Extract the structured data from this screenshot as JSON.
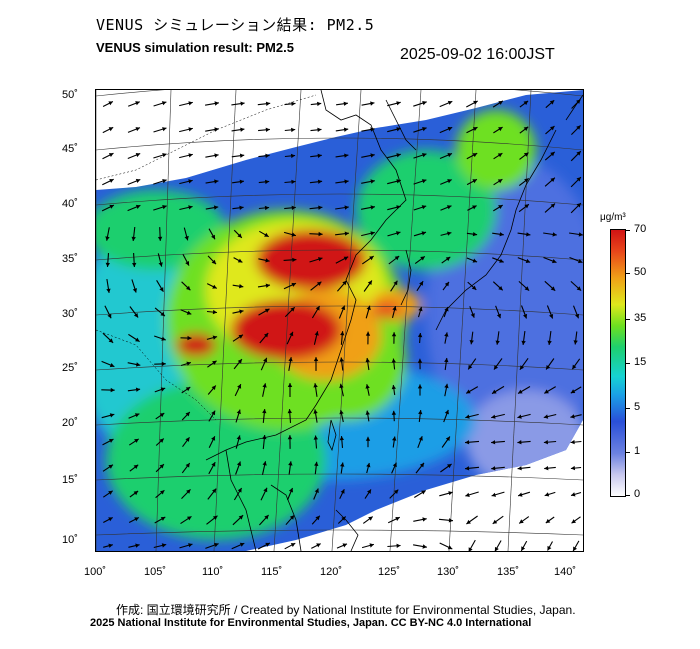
{
  "header": {
    "title_jp": "VENUS シミュレーション結果: PM2.5",
    "title_en": "VENUS simulation result: PM2.5",
    "timestamp": "2025-09-02 16:00JST"
  },
  "map": {
    "lat_labels": [
      "50˚",
      "45˚",
      "40˚",
      "35˚",
      "30˚",
      "25˚",
      "20˚",
      "15˚",
      "10˚"
    ],
    "lon_labels": [
      "100˚",
      "105˚",
      "110˚",
      "115˚",
      "120˚",
      "125˚",
      "130˚",
      "135˚",
      "140˚"
    ],
    "pollution_colors": [
      "#d01414",
      "#e8461a",
      "#f0a018",
      "#dfe81c",
      "#6ee020",
      "#1ecf6e",
      "#16d2d2",
      "#1aa0e6",
      "#2a4fd8",
      "#6c82e0"
    ]
  },
  "colorbar": {
    "unit": "μg/m³",
    "ticks": [
      "70",
      "50",
      "35",
      "15",
      "5",
      "1",
      "0"
    ]
  },
  "credits": {
    "line1": "作成: 国立環境研究所 / Created by National Institute for Environmental Studies, Japan.",
    "line2": "2025 National Institute for Environmental Studies, Japan. CC BY-NC 4.0 International"
  }
}
